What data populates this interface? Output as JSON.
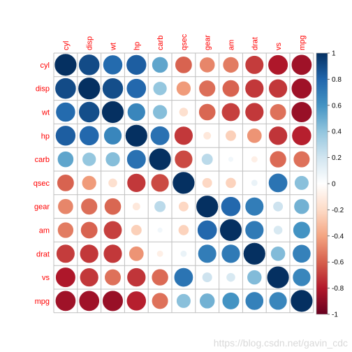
{
  "chart_data": {
    "type": "heatmap",
    "variables": [
      "cyl",
      "disp",
      "wt",
      "hp",
      "carb",
      "qsec",
      "gear",
      "am",
      "drat",
      "vs",
      "mpg"
    ],
    "matrix": [
      [
        1.0,
        0.9,
        0.78,
        0.83,
        0.53,
        -0.59,
        -0.49,
        -0.52,
        -0.7,
        -0.81,
        -0.85
      ],
      [
        0.9,
        1.0,
        0.89,
        0.79,
        0.39,
        -0.43,
        -0.56,
        -0.59,
        -0.71,
        -0.71,
        -0.85
      ],
      [
        0.78,
        0.89,
        1.0,
        0.66,
        0.43,
        -0.17,
        -0.58,
        -0.69,
        -0.71,
        -0.55,
        -0.87
      ],
      [
        0.83,
        0.79,
        0.66,
        1.0,
        0.75,
        -0.71,
        -0.13,
        -0.24,
        -0.45,
        -0.72,
        -0.78
      ],
      [
        0.53,
        0.39,
        0.43,
        0.75,
        1.0,
        -0.66,
        0.27,
        0.06,
        -0.09,
        -0.57,
        -0.55
      ],
      [
        -0.59,
        -0.43,
        -0.17,
        -0.71,
        -0.66,
        1.0,
        -0.21,
        -0.23,
        0.09,
        0.74,
        0.42
      ],
      [
        -0.49,
        -0.56,
        -0.58,
        -0.13,
        0.27,
        -0.21,
        1.0,
        0.79,
        0.7,
        0.21,
        0.48
      ],
      [
        -0.52,
        -0.59,
        -0.69,
        -0.24,
        0.06,
        -0.23,
        0.79,
        1.0,
        0.71,
        0.17,
        0.6
      ],
      [
        -0.7,
        -0.71,
        -0.71,
        -0.45,
        -0.09,
        0.09,
        0.7,
        0.71,
        1.0,
        0.44,
        0.68
      ],
      [
        -0.81,
        -0.71,
        -0.55,
        -0.72,
        -0.57,
        0.74,
        0.21,
        0.17,
        0.44,
        1.0,
        0.66
      ],
      [
        -0.85,
        -0.85,
        -0.87,
        -0.78,
        -0.55,
        0.42,
        0.48,
        0.6,
        0.68,
        0.66,
        1.0
      ]
    ],
    "colorbar": {
      "range": [
        -1,
        1
      ],
      "ticks": [
        "1",
        "0.8",
        "0.6",
        "0.4",
        "0.2",
        "0",
        "-0.2",
        "-0.4",
        "-0.6",
        "-0.8",
        "-1"
      ],
      "colors": [
        "#67001f",
        "#b2182b",
        "#d6604d",
        "#f4a582",
        "#fddbc7",
        "#ffffff",
        "#d1e5f0",
        "#92c5de",
        "#4393c3",
        "#2166ac",
        "#053061"
      ]
    },
    "title": "",
    "xlabel": "",
    "ylabel": "",
    "grid": true,
    "legend": "right"
  },
  "watermark": "https://blog.csdn.net/gavin_cdc"
}
